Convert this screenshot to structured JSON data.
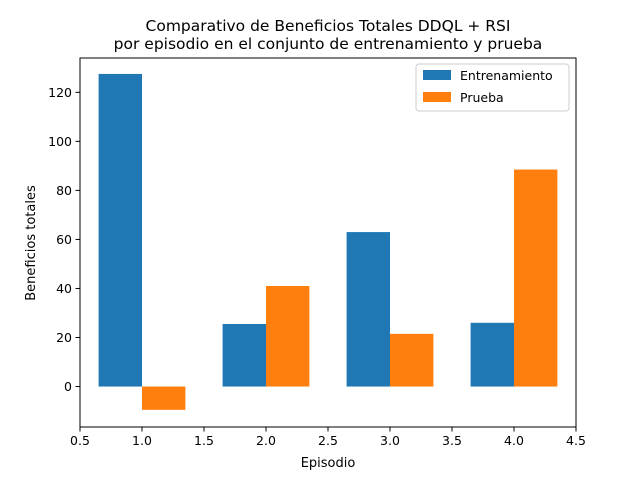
{
  "chart_data": {
    "type": "bar",
    "title": "Comparativo de Beneficios Totales DDQL + RSI\npor episodio en el conjunto de entrenamiento y prueba",
    "title_lines": [
      "Comparativo de Beneficios Totales DDQL + RSI",
      "por episodio en el conjunto de entrenamiento y prueba"
    ],
    "xlabel": "Episodio",
    "ylabel": "Beneficios totales",
    "x": [
      1,
      2,
      3,
      4
    ],
    "bar_width": 0.35,
    "series": [
      {
        "name": "Entrenamiento",
        "color": "#1f77b4",
        "values": [
          127.5,
          25.5,
          63,
          26
        ]
      },
      {
        "name": "Prueba",
        "color": "#ff7f0e",
        "values": [
          -9.5,
          41,
          21.5,
          88.5
        ]
      }
    ],
    "xlim": [
      0.5,
      4.5
    ],
    "ylim": [
      -16.5,
      134
    ],
    "xticks": [
      "0.5",
      "1.0",
      "1.5",
      "2.0",
      "2.5",
      "3.0",
      "3.5",
      "4.0",
      "4.5"
    ],
    "yticks": [
      "0",
      "20",
      "40",
      "60",
      "80",
      "100",
      "120"
    ],
    "grid": false,
    "legend_position": "top-right"
  }
}
